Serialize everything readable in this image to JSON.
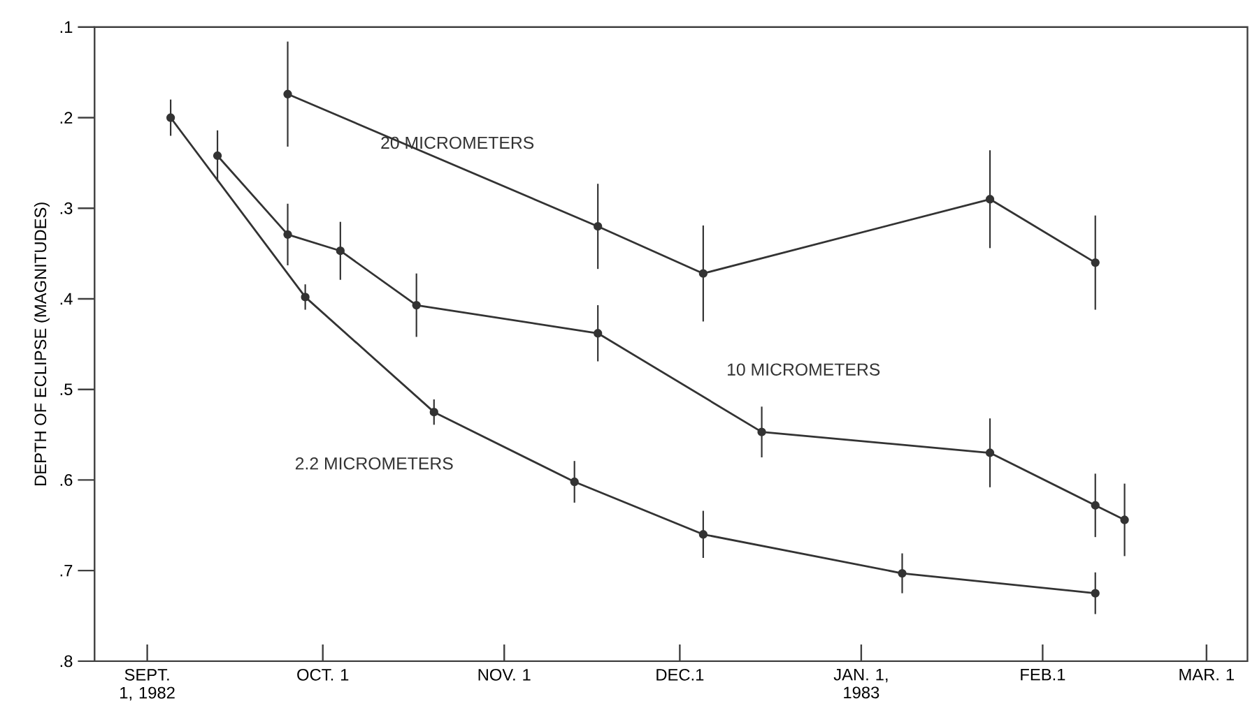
{
  "chart_data": {
    "type": "line",
    "ylabel": "DEPTH OF ECLIPSE (MAGNITUDES)",
    "xlim": [
      "1982-08-23",
      "1983-03-08"
    ],
    "xticks": [
      {
        "value": "1982-09-01",
        "label": "SEPT. 1, 1982"
      },
      {
        "value": "1982-10-01",
        "label": "OCT. 1"
      },
      {
        "value": "1982-11-01",
        "label": "NOV. 1"
      },
      {
        "value": "1982-12-01",
        "label": "DEC.1"
      },
      {
        "value": "1983-01-01",
        "label": "JAN. 1, 1983"
      },
      {
        "value": "1983-02-01",
        "label": "FEB.1"
      },
      {
        "value": "1983-03-01",
        "label": "MAR. 1"
      }
    ],
    "ylim": [
      0.8,
      0.1
    ],
    "yticks": [
      {
        "value": 0.1,
        "label": ".1"
      },
      {
        "value": 0.2,
        "label": ".2"
      },
      {
        "value": 0.3,
        "label": ".3"
      },
      {
        "value": 0.4,
        "label": ".4"
      },
      {
        "value": 0.5,
        "label": ".5"
      },
      {
        "value": 0.6,
        "label": ".6"
      },
      {
        "value": 0.7,
        "label": ".7"
      },
      {
        "value": 0.8,
        "label": ".8"
      }
    ],
    "grid": false,
    "legend": false,
    "marker": "circle",
    "line_style": "solid",
    "series": [
      {
        "name": "20 MICROMETERS",
        "color": "#333333",
        "x": [
          "1982-09-25",
          "1982-11-17",
          "1982-12-05",
          "1983-01-23",
          "1983-02-10"
        ],
        "values": [
          0.174,
          0.32,
          0.372,
          0.29,
          0.36
        ],
        "errors": [
          0.058,
          0.047,
          0.053,
          0.054,
          0.052
        ]
      },
      {
        "name": "10 MICROMETERS",
        "color": "#333333",
        "x": [
          "1982-09-13",
          "1982-09-25",
          "1982-10-04",
          "1982-10-17",
          "1982-11-17",
          "1982-12-15",
          "1983-01-23",
          "1983-02-10",
          "1983-02-15"
        ],
        "values": [
          0.242,
          0.329,
          0.347,
          0.407,
          0.438,
          0.547,
          0.57,
          0.628,
          0.644
        ],
        "errors": [
          0.028,
          0.034,
          0.032,
          0.035,
          0.031,
          0.028,
          0.038,
          0.035,
          0.04
        ]
      },
      {
        "name": "2.2 MICROMETERS",
        "color": "#333333",
        "x": [
          "1982-09-05",
          "1982-09-28",
          "1982-10-20",
          "1982-11-13",
          "1982-12-05",
          "1983-01-08",
          "1983-02-10"
        ],
        "values": [
          0.2,
          0.398,
          0.525,
          0.602,
          0.66,
          0.703,
          0.725
        ],
        "errors": [
          0.02,
          0.014,
          0.014,
          0.023,
          0.026,
          0.022,
          0.023
        ]
      }
    ]
  }
}
